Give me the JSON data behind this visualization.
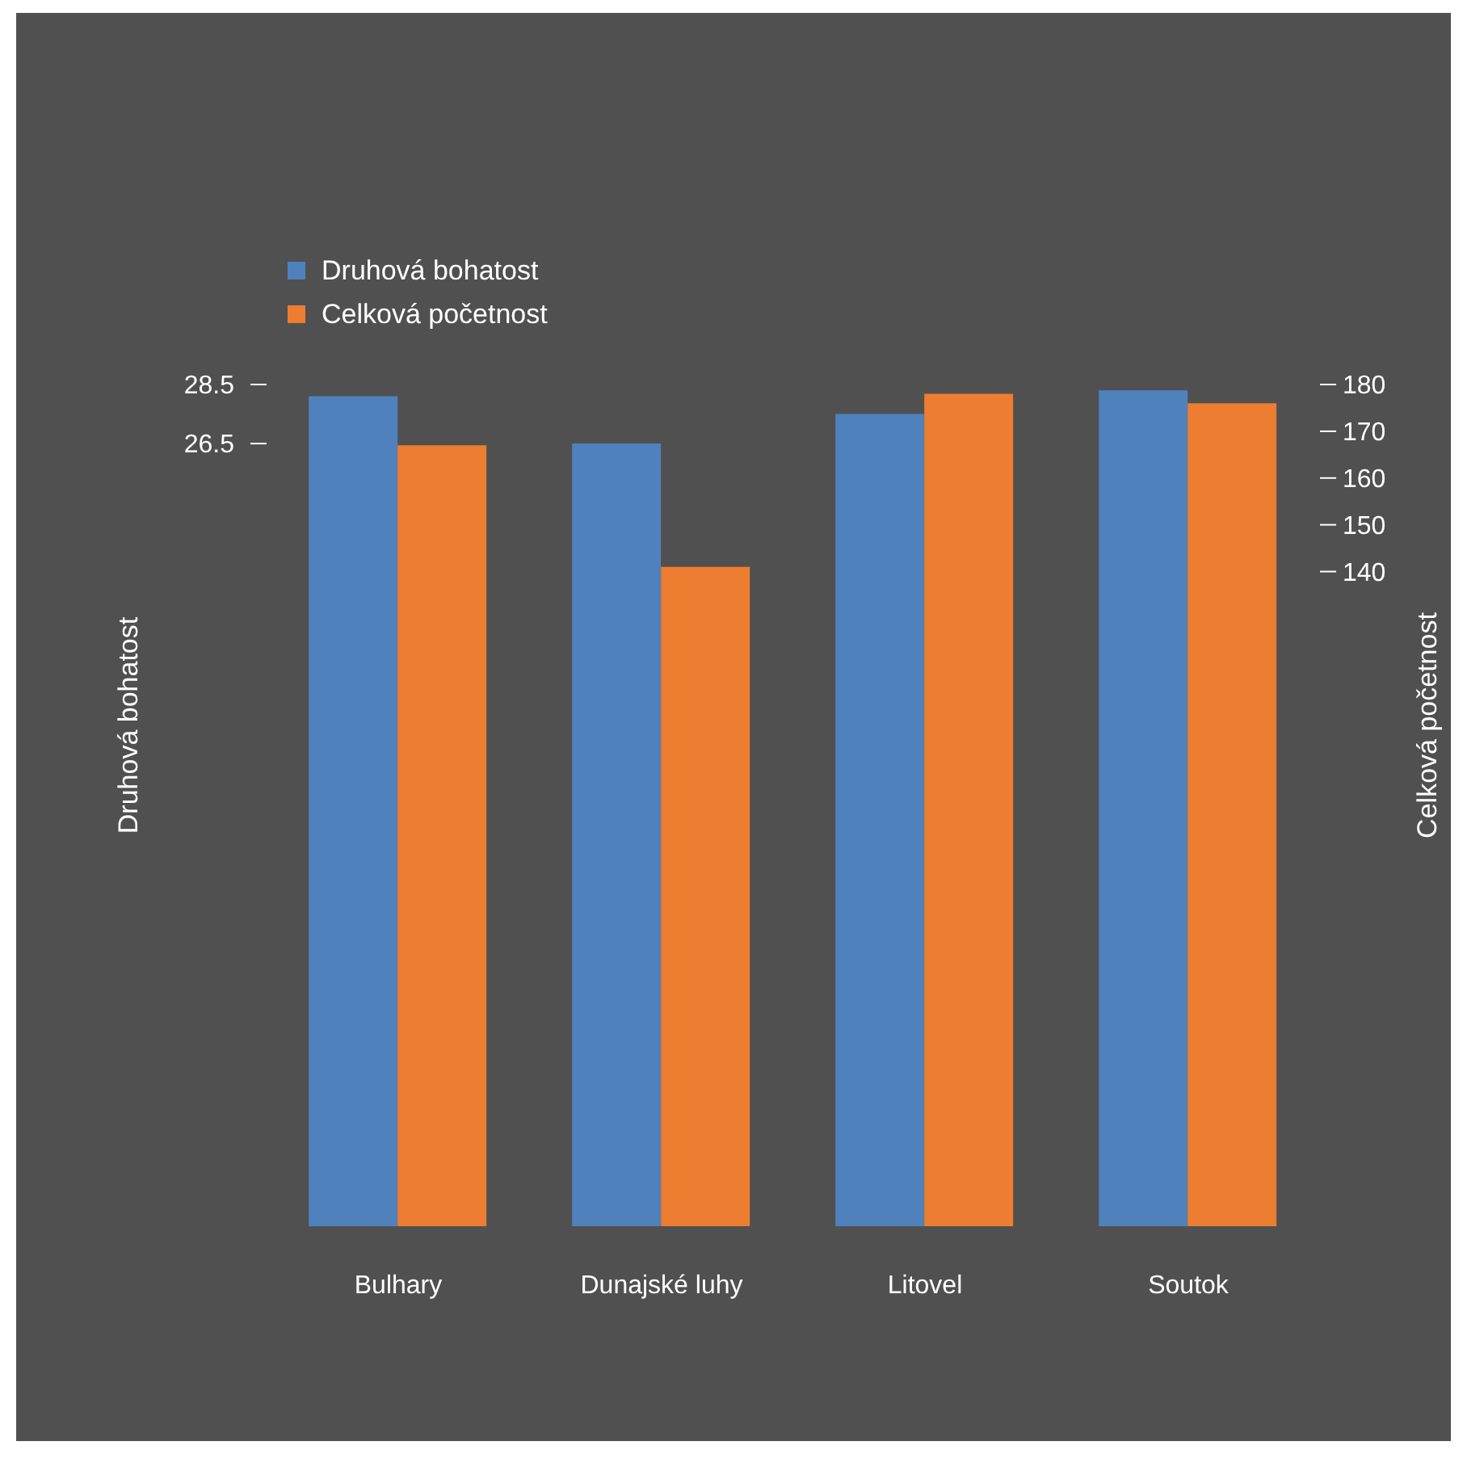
{
  "chart_data": {
    "type": "bar",
    "categories": [
      "Bulhary",
      "Dunajské luhy",
      "Litovel",
      "Soutok"
    ],
    "series": [
      {
        "name": "Druhová bohatost",
        "color": "#4f81bd",
        "values": [
          28.1,
          26.5,
          27.5,
          28.3
        ]
      },
      {
        "name": "Celková početnost",
        "color": "#ed7d31",
        "values": [
          167,
          141,
          178,
          176
        ],
        "axis": "y2"
      }
    ],
    "ylabel": "Druhová bohatost",
    "y2label": "Celková početnost",
    "ylim": [
      0,
      28.5
    ],
    "yticks": [
      26.5,
      28.5
    ],
    "y2lim": [
      0,
      180
    ],
    "y2ticks": [
      140,
      150,
      160,
      170,
      180
    ],
    "legend": "top left",
    "grid": false
  }
}
